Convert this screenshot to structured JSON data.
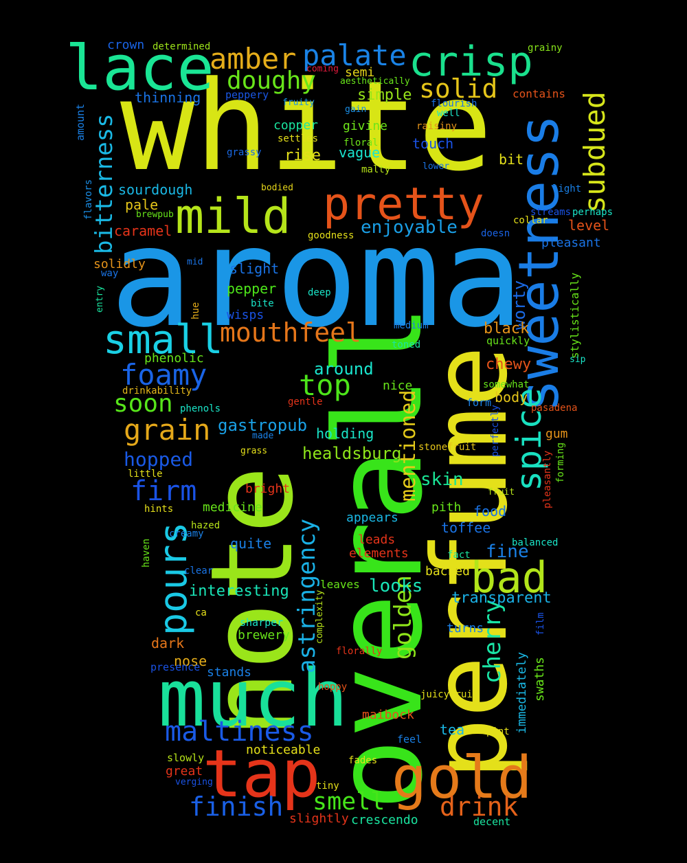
{
  "background": "#000000",
  "words": [
    {
      "text": "aroma",
      "color": "#1a96e6"
    },
    {
      "text": "white",
      "color": "#d8e515"
    },
    {
      "text": "overall",
      "color": "#38e41a"
    },
    {
      "text": "note",
      "color": "#9ae51a"
    },
    {
      "text": "perfume",
      "color": "#e4e01a"
    },
    {
      "text": "much",
      "color": "#19e09a"
    },
    {
      "text": "tap",
      "color": "#e5341a"
    },
    {
      "text": "gold",
      "color": "#e57a1a"
    },
    {
      "text": "sweetness",
      "color": "#1a7de6"
    },
    {
      "text": "lace",
      "color": "#1ae595"
    },
    {
      "text": "crisp",
      "color": "#1ae08d"
    },
    {
      "text": "pretty",
      "color": "#e5531a"
    },
    {
      "text": "mild",
      "color": "#b5e41a"
    },
    {
      "text": "palate",
      "color": "#1a83e6"
    },
    {
      "text": "amber",
      "color": "#e5ad1a"
    },
    {
      "text": "subdued",
      "color": "#d6e51a"
    },
    {
      "text": "small",
      "color": "#1ad0e5"
    },
    {
      "text": "mouthfeel",
      "color": "#e5761a"
    },
    {
      "text": "bad",
      "color": "#b2e51a"
    },
    {
      "text": "spice",
      "color": "#19e0c0"
    },
    {
      "text": "pours",
      "color": "#1ac9e5"
    },
    {
      "text": "doughy",
      "color": "#68e51a"
    },
    {
      "text": "solid",
      "color": "#e5c51a"
    },
    {
      "text": "foamy",
      "color": "#1a64e6"
    },
    {
      "text": "grain",
      "color": "#e5a81a"
    },
    {
      "text": "top",
      "color": "#4de51a"
    },
    {
      "text": "soon",
      "color": "#57e51a"
    },
    {
      "text": "firm",
      "color": "#1a53e6"
    },
    {
      "text": "bitterness",
      "color": "#1ab9e5"
    },
    {
      "text": "astringency",
      "color": "#1ab0e5"
    },
    {
      "text": "maltiness",
      "color": "#1a5ae6"
    },
    {
      "text": "finish",
      "color": "#1a60e6"
    },
    {
      "text": "smell",
      "color": "#46e51a"
    },
    {
      "text": "drink",
      "color": "#e5621a"
    },
    {
      "text": "golden",
      "color": "#8ee51a"
    },
    {
      "text": "cherry",
      "color": "#1ae5a5"
    },
    {
      "text": "mentioned",
      "color": "#e5ca1a"
    },
    {
      "text": "hopped",
      "color": "#1a5ae6"
    },
    {
      "text": "enjoyable",
      "color": "#1a9fe6"
    },
    {
      "text": "gastropub",
      "color": "#1aa0e5"
    },
    {
      "text": "healdsburg",
      "color": "#8ee51a"
    },
    {
      "text": "interesting",
      "color": "#1ae5b8"
    },
    {
      "text": "transparent",
      "color": "#1ab0e5"
    },
    {
      "text": "looks",
      "color": "#1ae5b8"
    },
    {
      "text": "fine",
      "color": "#1a80e6"
    },
    {
      "text": "around",
      "color": "#1ae5ce"
    },
    {
      "text": "skin",
      "color": "#1ae596"
    },
    {
      "text": "worty",
      "color": "#1a6ae6"
    },
    {
      "text": "black",
      "color": "#e5931a"
    },
    {
      "text": "chewy",
      "color": "#e5531a"
    },
    {
      "text": "body",
      "color": "#e5c51a"
    },
    {
      "text": "crown",
      "color": "#1a64e6"
    },
    {
      "text": "determined",
      "color": "#9ee51a"
    },
    {
      "text": "grainy",
      "color": "#88e51a"
    },
    {
      "text": "thinning",
      "color": "#1a74e6"
    },
    {
      "text": "peppery",
      "color": "#1a58e6"
    },
    {
      "text": "semi",
      "color": "#e5d51a"
    },
    {
      "text": "aesthetically",
      "color": "#68e51a"
    },
    {
      "text": "simple",
      "color": "#98e51a"
    },
    {
      "text": "coming",
      "color": "#e51a3e"
    },
    {
      "text": "fruity",
      "color": "#1a96e6"
    },
    {
      "text": "gain",
      "color": "#1a8ee6"
    },
    {
      "text": "flourish",
      "color": "#1a74e6"
    },
    {
      "text": "well",
      "color": "#1ae5c8"
    },
    {
      "text": "contains",
      "color": "#e5531a"
    },
    {
      "text": "copper",
      "color": "#1ae5a0"
    },
    {
      "text": "givine",
      "color": "#6ee51a"
    },
    {
      "text": "raisiny",
      "color": "#e5931a"
    },
    {
      "text": "settles",
      "color": "#e5e01a"
    },
    {
      "text": "floral",
      "color": "#6ee51a"
    },
    {
      "text": "touch",
      "color": "#1a53e6"
    },
    {
      "text": "grassy",
      "color": "#1a6ae6"
    },
    {
      "text": "vague",
      "color": "#1ae5d0"
    },
    {
      "text": "rise",
      "color": "#e5e01a"
    },
    {
      "text": "bit",
      "color": "#e5e01a"
    },
    {
      "text": "malty",
      "color": "#b8e51a"
    },
    {
      "text": "lower",
      "color": "#1a74e6"
    },
    {
      "text": "sourdough",
      "color": "#1ab8e5"
    },
    {
      "text": "bodied",
      "color": "#e5d51a"
    },
    {
      "text": "light",
      "color": "#1a80e6"
    },
    {
      "text": "pale",
      "color": "#e5c51a"
    },
    {
      "text": "brewpub",
      "color": "#68e51a"
    },
    {
      "text": "streams",
      "color": "#1a53e6"
    },
    {
      "text": "perhaps",
      "color": "#1ae5c8"
    },
    {
      "text": "collar",
      "color": "#e5e01a"
    },
    {
      "text": "level",
      "color": "#e5531a"
    },
    {
      "text": "caramel",
      "color": "#e5341a"
    },
    {
      "text": "goodness",
      "color": "#e5e01a"
    },
    {
      "text": "doesn",
      "color": "#1a64e6"
    },
    {
      "text": "pleasant",
      "color": "#1a74e6"
    },
    {
      "text": "flavors",
      "color": "#1a8ee6"
    },
    {
      "text": "amount",
      "color": "#1a80e6"
    },
    {
      "text": "solidly",
      "color": "#e5931a"
    },
    {
      "text": "mid",
      "color": "#1a74e6"
    },
    {
      "text": "way",
      "color": "#1a74e6"
    },
    {
      "text": "slight",
      "color": "#1a74e6"
    },
    {
      "text": "pepper",
      "color": "#4de51a"
    },
    {
      "text": "deep",
      "color": "#1ae5c8"
    },
    {
      "text": "entry",
      "color": "#1ae5a0"
    },
    {
      "text": "bite",
      "color": "#1ae5c8"
    },
    {
      "text": "hue",
      "color": "#e5ad1a"
    },
    {
      "text": "wisps",
      "color": "#1a53e6"
    },
    {
      "text": "stylistically",
      "color": "#68e51a"
    },
    {
      "text": "medium",
      "color": "#1a80e6"
    },
    {
      "text": "quickly",
      "color": "#68e51a"
    },
    {
      "text": "toned",
      "color": "#1ae5a0"
    },
    {
      "text": "sip",
      "color": "#1ae5c8"
    },
    {
      "text": "phenolic",
      "color": "#68e51a"
    },
    {
      "text": "drinkability",
      "color": "#e5b81a"
    },
    {
      "text": "somewhat",
      "color": "#68e51a"
    },
    {
      "text": "nice",
      "color": "#68e51a"
    },
    {
      "text": "gentle",
      "color": "#e5341a"
    },
    {
      "text": "form",
      "color": "#1a80e6"
    },
    {
      "text": "pasadena",
      "color": "#e5531a"
    },
    {
      "text": "phenols",
      "color": "#1ae5c8"
    },
    {
      "text": "made",
      "color": "#1a80e6"
    },
    {
      "text": "holding",
      "color": "#1ae5c8"
    },
    {
      "text": "perfectly",
      "color": "#1a53e6"
    },
    {
      "text": "gum",
      "color": "#e5931a"
    },
    {
      "text": "grass",
      "color": "#e5e01a"
    },
    {
      "text": "stonefruit",
      "color": "#e5c51a"
    },
    {
      "text": "forming",
      "color": "#68e51a"
    },
    {
      "text": "little",
      "color": "#e5e01a"
    },
    {
      "text": "pleasantly",
      "color": "#e5341a"
    },
    {
      "text": "bright",
      "color": "#e5341a"
    },
    {
      "text": "fruit",
      "color": "#b8e51a"
    },
    {
      "text": "hints",
      "color": "#e5e01a"
    },
    {
      "text": "medicine",
      "color": "#68e51a"
    },
    {
      "text": "pith",
      "color": "#68e51a"
    },
    {
      "text": "food",
      "color": "#1a74e6"
    },
    {
      "text": "hazed",
      "color": "#b8e51a"
    },
    {
      "text": "appears",
      "color": "#1ab8e5"
    },
    {
      "text": "creamy",
      "color": "#1a80e6"
    },
    {
      "text": "toffee",
      "color": "#1a74e6"
    },
    {
      "text": "leads",
      "color": "#e5341a"
    },
    {
      "text": "balanced",
      "color": "#1ae5c8"
    },
    {
      "text": "haven",
      "color": "#68e51a"
    },
    {
      "text": "quite",
      "color": "#1a80e6"
    },
    {
      "text": "elements",
      "color": "#e5341a"
    },
    {
      "text": "fact",
      "color": "#1ae5a0"
    },
    {
      "text": "clear",
      "color": "#1a74e6"
    },
    {
      "text": "backed",
      "color": "#e5e01a"
    },
    {
      "text": "leaves",
      "color": "#68e51a"
    },
    {
      "text": "complexity",
      "color": "#b8e51a"
    },
    {
      "text": "ca",
      "color": "#e5e01a"
    },
    {
      "text": "sharper",
      "color": "#1ae5c8"
    },
    {
      "text": "turns",
      "color": "#1a80e6"
    },
    {
      "text": "film",
      "color": "#1a53e6"
    },
    {
      "text": "dark",
      "color": "#e5761a"
    },
    {
      "text": "brewery",
      "color": "#68e51a"
    },
    {
      "text": "immediately",
      "color": "#1ab8e5"
    },
    {
      "text": "florally",
      "color": "#e5341a"
    },
    {
      "text": "nose",
      "color": "#e5ad1a"
    },
    {
      "text": "presence",
      "color": "#1a53e6"
    },
    {
      "text": "stands",
      "color": "#1a80e6"
    },
    {
      "text": "swaths",
      "color": "#68e51a"
    },
    {
      "text": "hoppy",
      "color": "#e5531a"
    },
    {
      "text": "juicyfruit",
      "color": "#e5e01a"
    },
    {
      "text": "maibock",
      "color": "#e5531a"
    },
    {
      "text": "tea",
      "color": "#1ab8e5"
    },
    {
      "text": "pint",
      "color": "#e5e01a"
    },
    {
      "text": "feel",
      "color": "#1a80e6"
    },
    {
      "text": "noticeable",
      "color": "#e5e01a"
    },
    {
      "text": "slowly",
      "color": "#b8e51a"
    },
    {
      "text": "fades",
      "color": "#e5e01a"
    },
    {
      "text": "great",
      "color": "#e5341a"
    },
    {
      "text": "verging",
      "color": "#1a53e6"
    },
    {
      "text": "tiny",
      "color": "#e5e01a"
    },
    {
      "text": "slightly",
      "color": "#e5341a"
    },
    {
      "text": "crescendo",
      "color": "#1ae5a0"
    },
    {
      "text": "decent",
      "color": "#1ae5a0"
    }
  ]
}
